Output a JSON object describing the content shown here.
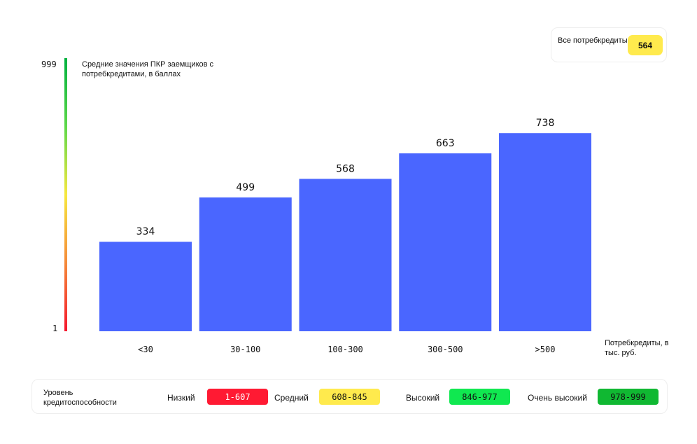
{
  "summary": {
    "label": "Все потребкредиты",
    "value": "564",
    "color": "#ffea4d"
  },
  "y_axis": {
    "top_tick": "999",
    "bottom_tick": "1",
    "label": "Средние значения ПКР заемщиков с потребкредитами, в баллах",
    "gradient": [
      "#00b140",
      "#5ed84a",
      "#f7e840",
      "#f58a3a",
      "#f5162e"
    ]
  },
  "x_axis": {
    "label": "Потребкредиты, в тыс. руб."
  },
  "chart_data": {
    "type": "bar",
    "categories": [
      "<30",
      "30-100",
      "100-300",
      "300-500",
      ">500"
    ],
    "values": [
      334,
      499,
      568,
      663,
      738
    ],
    "value_labels": [
      "334",
      "499",
      "568",
      "663",
      "738"
    ],
    "ylim": [
      1,
      999
    ],
    "ylabel": "Средние значения ПКР заемщиков с потребкредитами, в баллах",
    "xlabel": "Потребкредиты, в тыс. руб.",
    "bar_color": "#4a66ff",
    "grid": false
  },
  "legend": {
    "title": "Уровень кредитоспособности",
    "levels": [
      {
        "name": "Низкий",
        "range": "1-607",
        "color": "#ff1a33",
        "text_color": "#ffffff"
      },
      {
        "name": "Средний",
        "range": "608-845",
        "color": "#ffea4d",
        "text_color": "#111111"
      },
      {
        "name": "Высокий",
        "range": "846-977",
        "color": "#10e850",
        "text_color": "#111111"
      },
      {
        "name": "Очень высокий",
        "range": "978-999",
        "color": "#10b832",
        "text_color": "#111111"
      }
    ]
  }
}
